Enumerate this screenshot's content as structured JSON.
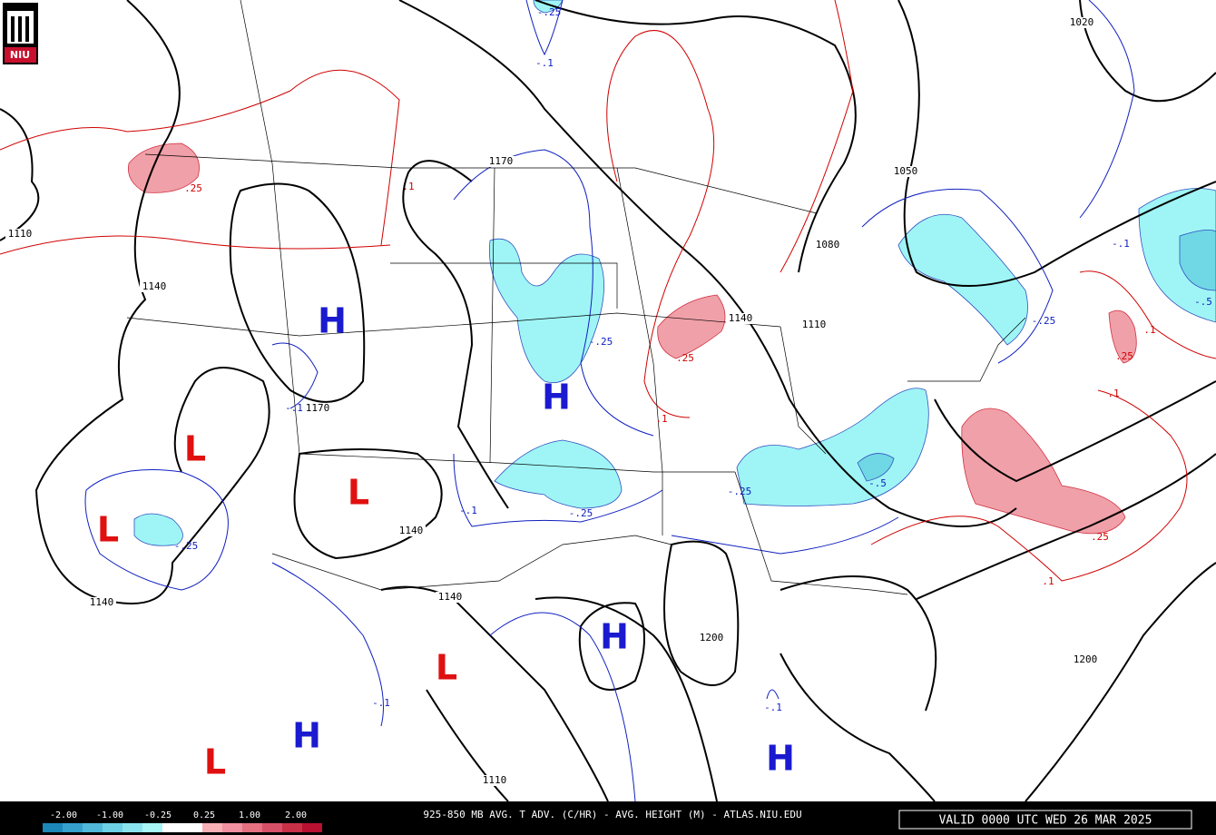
{
  "logo": "NIU",
  "map": {
    "height_labels": [
      "1110",
      "1140",
      "1170",
      "1020",
      "1050",
      "1080",
      "1140",
      "1110",
      "1170",
      "1140",
      "1140",
      "1140",
      "1200",
      "1200",
      "1110"
    ],
    "warm_labels": [
      ".25",
      ".1",
      ".25",
      ".1",
      ".1",
      ".25",
      ".1",
      ".25",
      ".1"
    ],
    "cold_labels": [
      "-.25",
      "-.1",
      "-.25",
      "-.1",
      "-.1",
      "-.25",
      "-.25",
      "-.5",
      "-.25",
      "-.1",
      "-.5",
      "-.25",
      "-.1",
      "-.1"
    ],
    "highs": [
      "H",
      "H",
      "H",
      "H",
      "H"
    ],
    "lows": [
      "L",
      "L",
      "L",
      "L",
      "L"
    ]
  },
  "colorbar": {
    "labels": [
      "-2.00",
      "-1.00",
      "-0.25",
      "0.25",
      "1.00",
      "2.00"
    ]
  },
  "footer": {
    "title": "925-850 MB AVG. T ADV. (C/HR) - AVG. HEIGHT (M) - ATLAS.NIU.EDU",
    "valid": "VALID 0000 UTC WED 26 MAR 2025"
  }
}
